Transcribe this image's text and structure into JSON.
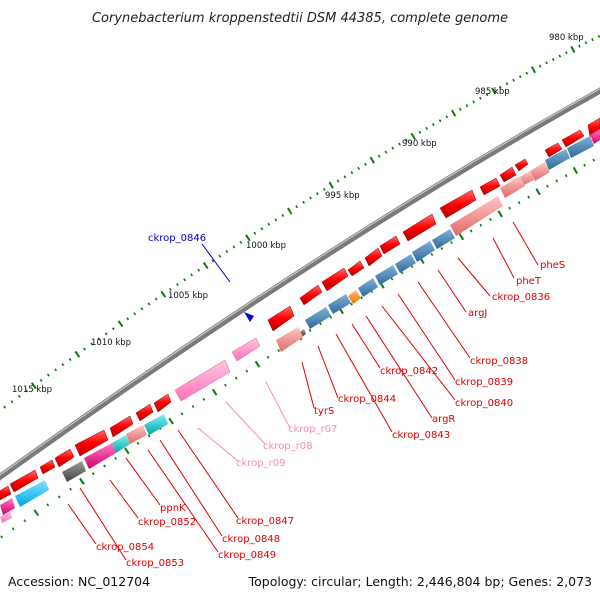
{
  "title": "Corynebacterium kroppenstedtii DSM 44385, complete genome",
  "footer": {
    "accession": "Accession: NC_012704",
    "summary": "Topology: circular; Length: 2,446,804 bp; Genes: 2,073"
  },
  "colors": {
    "backbone": "#808080",
    "ticks": "#0a7a0a",
    "cds": "#ff0000",
    "pseudo_pink": "#ff80c0",
    "rrna_light": "#ff9a9a",
    "steel_blue": "#4682b4",
    "sky_blue": "#00bfff",
    "teal": "#00c8c8",
    "magenta": "#ff1493",
    "dark_gray": "#555555",
    "orange": "#ff8c00",
    "label_red": "#e00000",
    "label_pink": "#ff88bb",
    "label_blue": "#0000cc"
  },
  "scale_labels": [
    "980 kbp",
    "985 kbp",
    "990 kbp",
    "995 kbp",
    "1000 kbp",
    "1005 kbp",
    "1010 kbp",
    "1015 kbp"
  ],
  "gene_labels": [
    {
      "name": "pheS",
      "color": "red"
    },
    {
      "name": "pheT",
      "color": "red"
    },
    {
      "name": "ckrop_0836",
      "color": "red"
    },
    {
      "name": "argJ",
      "color": "red"
    },
    {
      "name": "ckrop_0838",
      "color": "red"
    },
    {
      "name": "ckrop_0839",
      "color": "red"
    },
    {
      "name": "ckrop_0840",
      "color": "red"
    },
    {
      "name": "argR",
      "color": "red"
    },
    {
      "name": "ckrop_0842",
      "color": "red"
    },
    {
      "name": "ckrop_0843",
      "color": "red"
    },
    {
      "name": "ckrop_0844",
      "color": "red"
    },
    {
      "name": "tyrS",
      "color": "red"
    },
    {
      "name": "ckrop_r07",
      "color": "pink"
    },
    {
      "name": "ckrop_r08",
      "color": "pink"
    },
    {
      "name": "ckrop_r09",
      "color": "pink"
    },
    {
      "name": "ckrop_0846",
      "color": "blue"
    },
    {
      "name": "ckrop_0847",
      "color": "red"
    },
    {
      "name": "ckrop_0848",
      "color": "red"
    },
    {
      "name": "ckrop_0849",
      "color": "red"
    },
    {
      "name": "ppnK",
      "color": "red"
    },
    {
      "name": "ckrop_0852",
      "color": "red"
    },
    {
      "name": "ckrop_0853",
      "color": "red"
    },
    {
      "name": "ckrop_0854",
      "color": "red"
    }
  ]
}
